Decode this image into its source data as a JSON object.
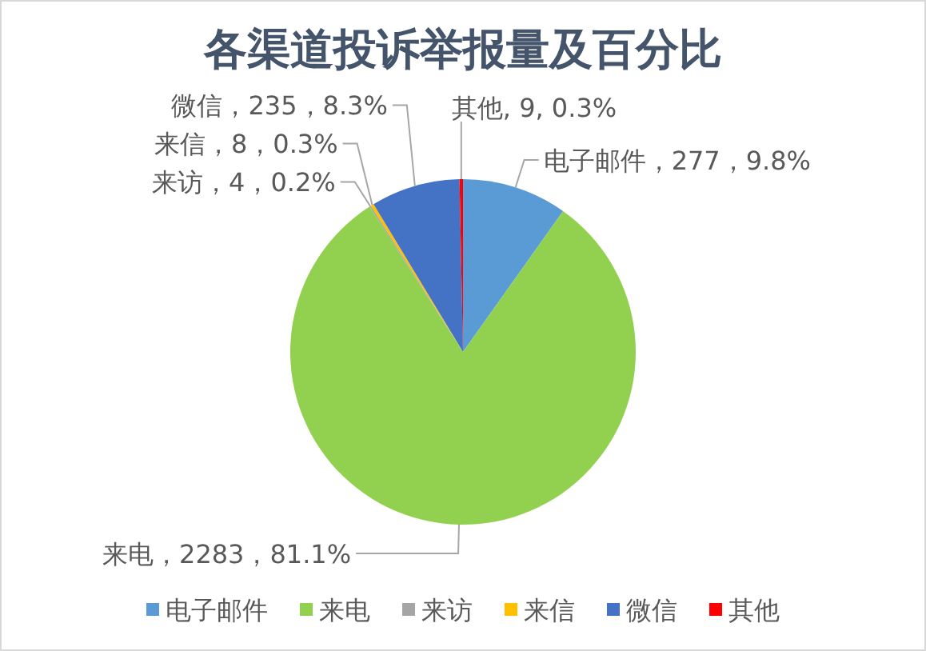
{
  "chart_data": {
    "type": "pie",
    "title": "各渠道投诉举报量及百分比",
    "categories": [
      "电子邮件",
      "来电",
      "来访",
      "来信",
      "微信",
      "其他"
    ],
    "values": [
      277,
      2283,
      4,
      8,
      235,
      9
    ],
    "colors": [
      "#5b9bd5",
      "#92d050",
      "#a5a5a5",
      "#ffc000",
      "#4472c4",
      "#ff0000"
    ],
    "value_labels": [
      "电子邮件，277，9.8%",
      "来电，2283，81.1%",
      "来访，4，0.2%",
      "来信，8，0.3%",
      "微信，235，8.3%",
      "其他, 9, 0.3%"
    ],
    "legend": "bottom"
  }
}
